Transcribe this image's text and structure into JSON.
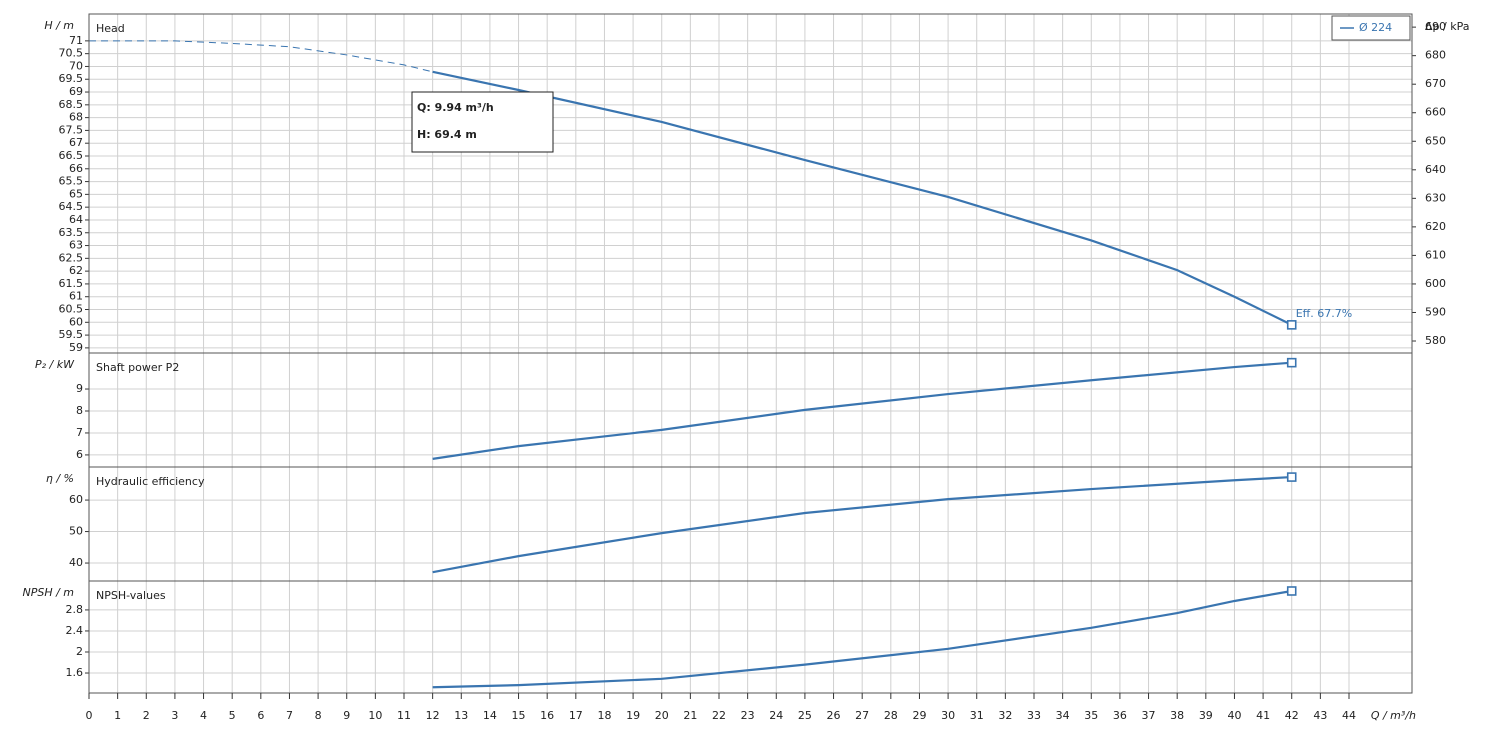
{
  "chart_data": [
    {
      "type": "line",
      "title": "Head",
      "ylabel": "H / m",
      "y2label": "Δp / kPa",
      "xlim": [
        0,
        46.2
      ],
      "ylim": [
        58.8,
        72.05
      ],
      "y2lim": [
        575.8,
        694.6
      ],
      "yticks": [
        59,
        59.5,
        60,
        60.5,
        61,
        61.5,
        62,
        62.5,
        63,
        63.5,
        64,
        64.5,
        65,
        65.5,
        66,
        66.5,
        67,
        67.5,
        68,
        68.5,
        69,
        69.5,
        70,
        70.5,
        71
      ],
      "y2ticks": [
        580,
        590,
        600,
        610,
        620,
        630,
        640,
        650,
        660,
        670,
        680,
        690
      ],
      "grid": true,
      "legend": "upper right",
      "series": [
        {
          "name": "Ø 224",
          "color": "#3a75b0",
          "style": "solid",
          "x": [
            12,
            15,
            20,
            25,
            30,
            35,
            38,
            40,
            42
          ],
          "values": [
            69.79,
            69.08,
            67.83,
            66.34,
            64.9,
            63.2,
            62.04,
            61.0,
            59.9
          ]
        },
        {
          "color": "#3a75b0",
          "style": "dashed",
          "x": [
            0,
            3,
            5,
            7,
            9,
            11,
            12
          ],
          "values": [
            71.0,
            71.0,
            70.9,
            70.77,
            70.45,
            70.06,
            69.79
          ]
        }
      ],
      "annotation_lines": [
        "Q: 9.94 m³/h",
        "H: 69.4 m"
      ],
      "end_label": "Eff. 67.7%"
    },
    {
      "type": "line",
      "title": "Shaft power P2",
      "ylabel": "P₂ / kW",
      "xlim": [
        0,
        46.2
      ],
      "ylim": [
        5.45,
        10.64
      ],
      "yticks": [
        6,
        7,
        8,
        9
      ],
      "grid": true,
      "series": [
        {
          "color": "#3a75b0",
          "style": "solid",
          "x": [
            12,
            15,
            20,
            25,
            30,
            35,
            40,
            42
          ],
          "values": [
            5.82,
            6.4,
            7.14,
            8.05,
            8.77,
            9.4,
            10.0,
            10.2
          ]
        }
      ]
    },
    {
      "type": "line",
      "title": "Hydraulic efficiency",
      "ylabel": "η / %",
      "xlim": [
        0,
        46.2
      ],
      "ylim": [
        34.3,
        70.5
      ],
      "yticks": [
        40,
        50,
        60
      ],
      "grid": true,
      "series": [
        {
          "color": "#3a75b0",
          "style": "solid",
          "x": [
            12,
            15,
            20,
            25,
            30,
            35,
            40,
            42
          ],
          "values": [
            37.1,
            42.2,
            49.5,
            55.9,
            60.3,
            63.5,
            66.3,
            67.3
          ]
        }
      ]
    },
    {
      "type": "line",
      "title": "NPSH-values",
      "ylabel": "NPSH / m",
      "xlabel": "Q / m³/h",
      "xlim": [
        0,
        46.2
      ],
      "ylim": [
        1.22,
        3.35
      ],
      "yticks": [
        1.6,
        2,
        2.4,
        2.8
      ],
      "grid": true,
      "xticks": [
        0,
        1,
        2,
        3,
        4,
        5,
        6,
        7,
        8,
        9,
        10,
        11,
        12,
        13,
        14,
        15,
        16,
        17,
        18,
        19,
        20,
        21,
        22,
        23,
        24,
        25,
        26,
        27,
        28,
        29,
        30,
        31,
        32,
        33,
        34,
        35,
        36,
        37,
        38,
        39,
        40,
        41,
        42,
        43,
        44
      ],
      "series": [
        {
          "color": "#3a75b0",
          "style": "solid",
          "x": [
            12,
            15,
            20,
            25,
            30,
            35,
            38,
            40,
            42
          ],
          "values": [
            1.33,
            1.37,
            1.49,
            1.76,
            2.06,
            2.46,
            2.74,
            2.97,
            3.16
          ]
        }
      ]
    }
  ]
}
